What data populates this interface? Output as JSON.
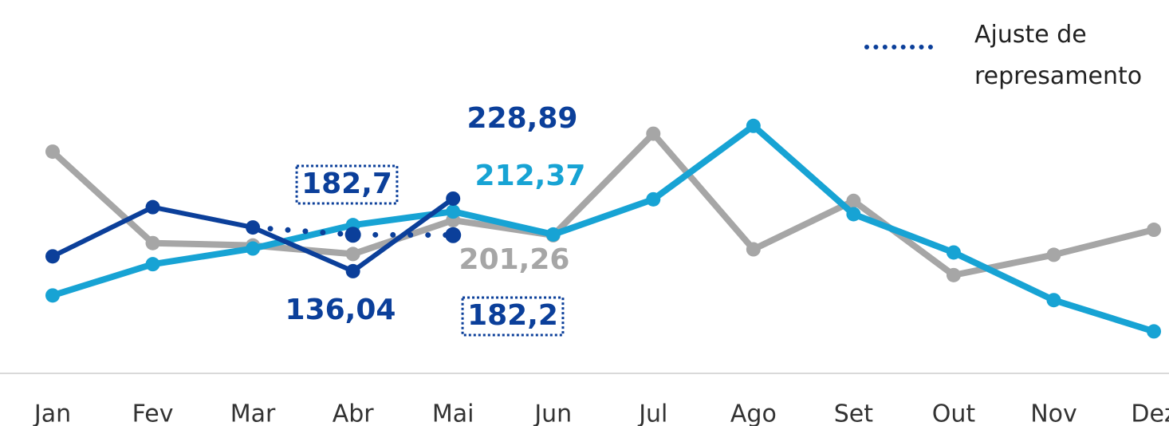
{
  "chart_data": {
    "type": "line",
    "categories": [
      "Jan",
      "Fev",
      "Mar",
      "Abr",
      "Mai",
      "Jun",
      "Jul",
      "Ago",
      "Set",
      "Out",
      "Nov",
      "Dez"
    ],
    "ylim": [
      40,
      480
    ],
    "series": [
      {
        "color": "#a6a6a6",
        "values": [
          289,
          172,
          169,
          158,
          201.26,
          182,
          312,
          164,
          226,
          131,
          157,
          189
        ],
        "value_labels": [
          null,
          null,
          null,
          null,
          "201,26",
          null,
          null,
          null,
          null,
          null,
          null,
          null
        ]
      },
      {
        "color": "#17a3d4",
        "values": [
          105,
          145,
          165,
          195,
          212.37,
          183,
          228,
          322,
          209,
          160,
          99,
          59
        ],
        "value_labels": [
          null,
          null,
          null,
          null,
          "212,37",
          null,
          null,
          null,
          null,
          null,
          null,
          null
        ]
      },
      {
        "color": "#0b3f9a",
        "values": [
          155,
          218,
          192,
          136.04,
          228.89,
          null,
          null,
          null,
          null,
          null,
          null,
          null
        ],
        "value_labels": [
          null,
          null,
          null,
          "136,04",
          "228,89",
          null,
          null,
          null,
          null,
          null,
          null,
          null
        ]
      },
      {
        "name": "Ajuste de represamento",
        "color": "#0b3f9a",
        "dotted": true,
        "values": [
          null,
          null,
          192,
          182.7,
          182.2,
          null,
          null,
          null,
          null,
          null,
          null,
          null
        ],
        "value_labels": [
          null,
          null,
          null,
          "182,7",
          "182,2",
          null,
          null,
          null,
          null,
          null,
          null,
          null
        ]
      }
    ],
    "legend": "top-right"
  }
}
